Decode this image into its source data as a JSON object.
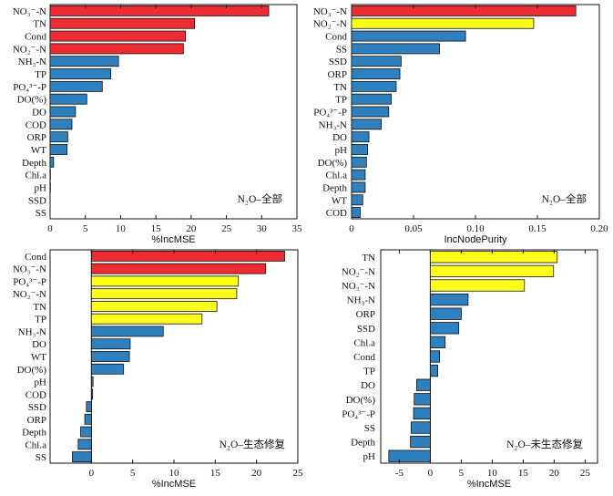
{
  "colors": {
    "red": "#ee2a33",
    "yellow": "#ffff1a",
    "blue": "#2f80bf"
  },
  "chart_data": [
    {
      "type": "bar",
      "orientation": "horizontal",
      "annotation": "N₂O–全部",
      "xlabel": "%IncMSE",
      "xlim": [
        0,
        35
      ],
      "xticks": [
        0,
        5,
        10,
        15,
        20,
        25,
        30,
        35
      ],
      "categories": [
        "NO₃⁻-N",
        "TN",
        "Cond",
        "NO₂⁻-N",
        "NH₃-N",
        "TP",
        "PO₄³⁻-P",
        "DO(%)",
        "DO",
        "COD",
        "ORP",
        "WT",
        "Depth",
        "Chl.a",
        "pH",
        "SSD",
        "SS"
      ],
      "values": [
        31.0,
        20.5,
        19.2,
        18.9,
        9.7,
        8.6,
        7.4,
        5.2,
        3.6,
        3.1,
        2.5,
        2.4,
        0.5,
        0.05,
        0.05,
        0.0,
        0.0
      ],
      "colors": [
        "red",
        "red",
        "red",
        "red",
        "blue",
        "blue",
        "blue",
        "blue",
        "blue",
        "blue",
        "blue",
        "blue",
        "blue",
        "blue",
        "blue",
        "blue",
        "blue"
      ]
    },
    {
      "type": "bar",
      "orientation": "horizontal",
      "annotation": "N₂O–全部",
      "xlabel": "IncNodePurity",
      "xlim": [
        0,
        0.2
      ],
      "xticks": [
        0,
        0.05,
        0.1,
        0.15,
        0.2
      ],
      "tick_labels": [
        "0",
        "0.05",
        "0.10",
        "0.15",
        "0.20"
      ],
      "categories": [
        "NO₃⁻-N",
        "NO₂⁻-N",
        "Cond",
        "SS",
        "SSD",
        "ORP",
        "TN",
        "TP",
        "PO₄³⁻-P",
        "NH₃-N",
        "DO",
        "pH",
        "DO(%)",
        "Chl.a",
        "Depth",
        "WT",
        "COD"
      ],
      "values": [
        0.181,
        0.147,
        0.092,
        0.071,
        0.04,
        0.039,
        0.036,
        0.032,
        0.03,
        0.024,
        0.014,
        0.013,
        0.012,
        0.011,
        0.011,
        0.009,
        0.007
      ],
      "colors": [
        "red",
        "yellow",
        "blue",
        "blue",
        "blue",
        "blue",
        "blue",
        "blue",
        "blue",
        "blue",
        "blue",
        "blue",
        "blue",
        "blue",
        "blue",
        "blue",
        "blue"
      ]
    },
    {
      "type": "bar",
      "orientation": "horizontal",
      "annotation": "N₂O–生态修复",
      "xlabel": "%IncMSE",
      "xlim": [
        -5,
        25
      ],
      "xticks": [
        0,
        5,
        10,
        15,
        20,
        25
      ],
      "categories": [
        "Cond",
        "NO₃⁻-N",
        "PO₄³⁻-P",
        "NO₂⁻-N",
        "TN",
        "TP",
        "NH₃-N",
        "DO",
        "WT",
        "DO(%)",
        "pH",
        "COD",
        "SSD",
        "ORP",
        "Depth",
        "Chl.a",
        "SS"
      ],
      "values": [
        23.4,
        21.1,
        17.8,
        17.6,
        15.2,
        13.4,
        8.7,
        4.7,
        4.6,
        3.9,
        0.2,
        0.15,
        -0.6,
        -0.8,
        -1.3,
        -1.6,
        -2.3
      ],
      "colors": [
        "red",
        "red",
        "yellow",
        "yellow",
        "yellow",
        "yellow",
        "blue",
        "blue",
        "blue",
        "blue",
        "blue",
        "blue",
        "blue",
        "blue",
        "blue",
        "blue",
        "blue"
      ]
    },
    {
      "type": "bar",
      "orientation": "horizontal",
      "annotation": "N₂O–未生态修复",
      "xlabel": "%IncMSE",
      "xlim": [
        -8,
        27
      ],
      "xticks": [
        -5,
        0,
        5,
        10,
        15,
        20,
        25
      ],
      "categories": [
        "TN",
        "NO₂⁻-N",
        "NO₃⁻-N",
        "NH₃-N",
        "ORP",
        "SSD",
        "Chl.a",
        "Cond",
        "TP",
        "DO",
        "DO(%)",
        "PO₄³⁻-P",
        "SS",
        "Depth",
        "pH"
      ],
      "values": [
        20.5,
        19.9,
        15.2,
        6.1,
        5.0,
        4.6,
        2.4,
        1.5,
        1.2,
        -2.2,
        -2.6,
        -2.7,
        -3.1,
        -3.2,
        -6.7
      ],
      "colors": [
        "yellow",
        "yellow",
        "yellow",
        "blue",
        "blue",
        "blue",
        "blue",
        "blue",
        "blue",
        "blue",
        "blue",
        "blue",
        "blue",
        "blue",
        "blue"
      ]
    }
  ]
}
